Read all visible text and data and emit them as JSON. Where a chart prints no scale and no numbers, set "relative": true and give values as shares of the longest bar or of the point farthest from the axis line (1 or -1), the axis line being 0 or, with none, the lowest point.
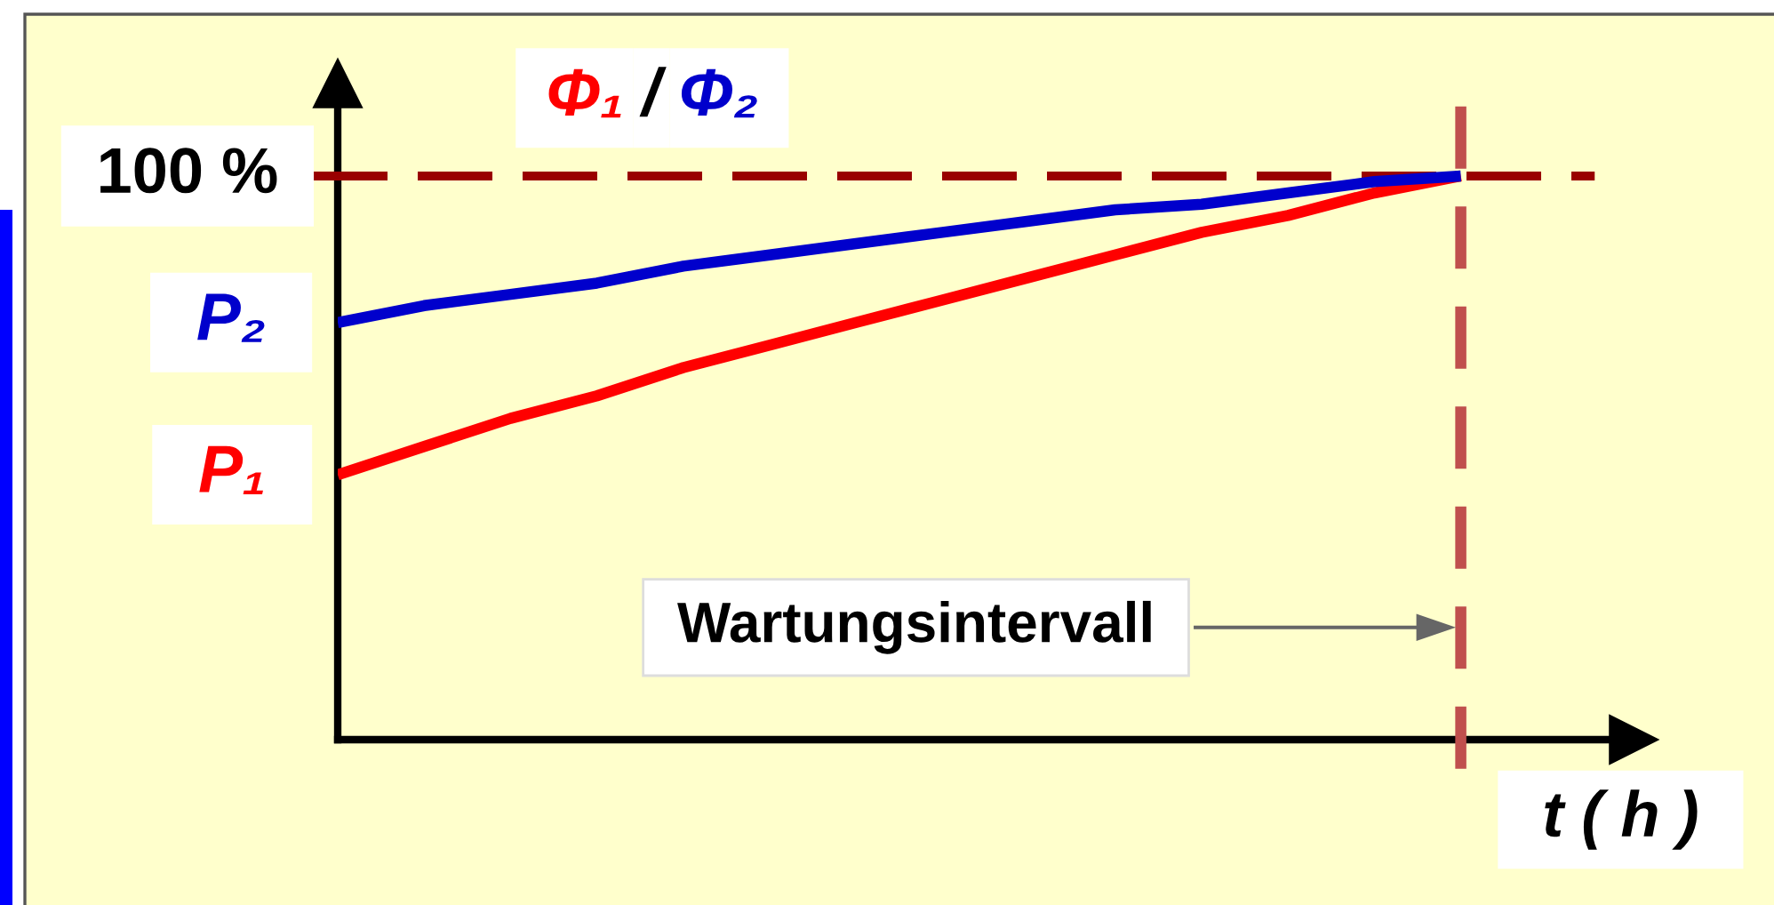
{
  "chart_data": {
    "type": "line",
    "relative": true,
    "ylabel": "Φ₁ / Φ₂",
    "xlabel": "t ( h )",
    "categories": [
      null,
      null,
      null,
      null,
      null,
      null,
      null,
      null,
      null,
      null,
      null,
      null,
      null,
      null,
      null,
      null
    ],
    "series": [
      {
        "name": "P₁",
        "color": "#ff0000",
        "values": [
          0.47,
          0.52,
          0.57,
          0.61,
          0.66,
          0.7,
          0.74,
          0.78,
          0.82,
          0.86,
          0.9,
          0.93,
          0.97,
          1,
          null,
          null
        ]
      },
      {
        "name": "P₂",
        "color": "#0000cc",
        "values": [
          0.74,
          0.77,
          0.79,
          0.81,
          0.84,
          0.86,
          0.88,
          0.9,
          0.92,
          0.94,
          0.95,
          0.97,
          0.99,
          1,
          null,
          null
        ]
      }
    ],
    "ref_lines": [
      {
        "axis": "y",
        "value": 1,
        "label": "100 %",
        "color": "#990000",
        "line_style": "dashed"
      }
    ],
    "annotations": [
      "Wartungsintervall"
    ]
  }
}
